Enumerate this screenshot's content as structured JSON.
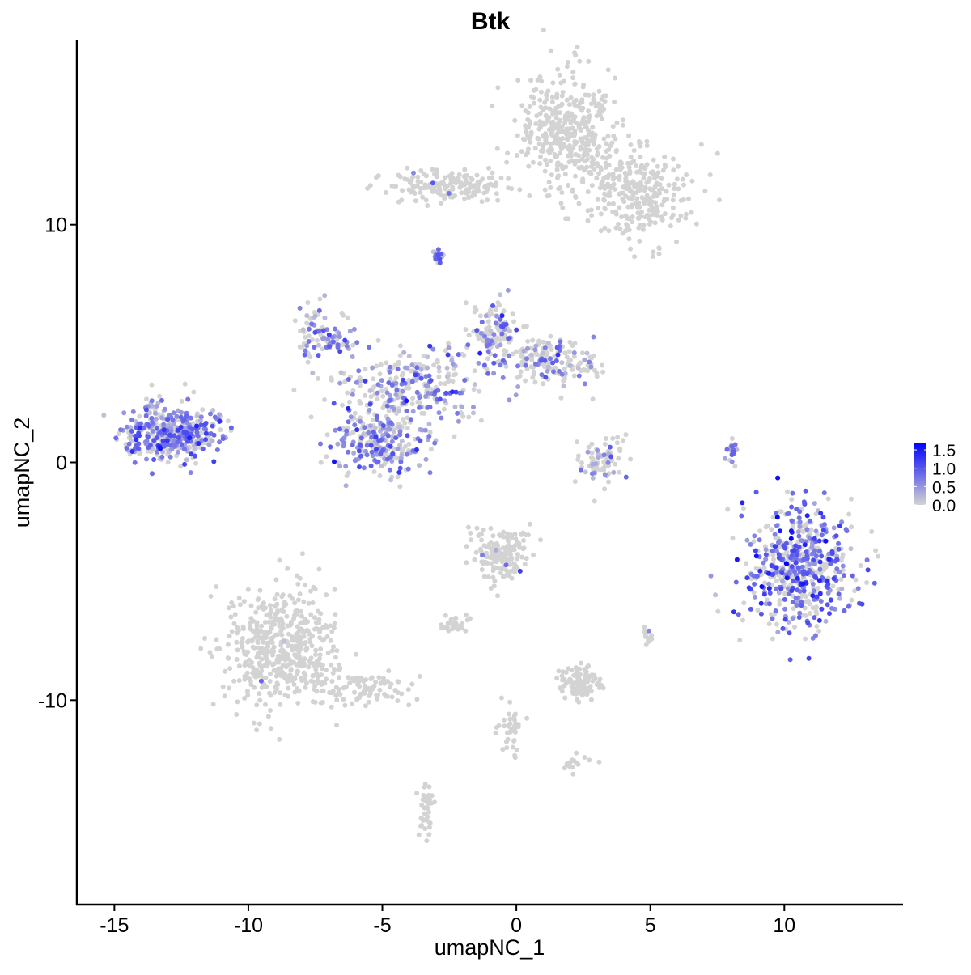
{
  "chart_data": {
    "type": "scatter",
    "title": "Btk",
    "xlabel": "umapNC_1",
    "ylabel": "umapNC_2",
    "xlim": [
      -16.4,
      14.4
    ],
    "ylim": [
      -18.6,
      17.75
    ],
    "x_ticks": [
      -15,
      -10,
      -5,
      0,
      5,
      10
    ],
    "y_ticks": [
      -10,
      0,
      10
    ],
    "x_tick_labels": [
      "-15",
      "-10",
      "-5",
      "0",
      "5",
      "10"
    ],
    "y_tick_labels": [
      "-10",
      "0",
      "10"
    ],
    "grid": false,
    "legend": {
      "placement": "right",
      "type": "colorbar",
      "range": [
        0,
        1.7
      ],
      "ticks": [
        "1.5",
        "1.0",
        "0.5",
        "0.0"
      ],
      "tick_values": [
        1.5,
        1.0,
        0.5,
        0.0
      ],
      "low_color": "#D3D3D3",
      "high_color": "#0000FF"
    },
    "clusters": [
      {
        "x": 1.9,
        "y": 14.0,
        "sx": 0.9,
        "sy": 1.2,
        "n": 380,
        "expr_frac": 0.0,
        "expr_mean": 0
      },
      {
        "x": 4.4,
        "y": 11.4,
        "sx": 1.0,
        "sy": 1.0,
        "n": 300,
        "expr_frac": 0.01,
        "expr_mean": 0.5
      },
      {
        "x": -2.4,
        "y": 11.6,
        "sx": 1.2,
        "sy": 0.35,
        "n": 170,
        "expr_frac": 0.01,
        "expr_mean": 0.5
      },
      {
        "x": -2.9,
        "y": 8.7,
        "sx": 0.12,
        "sy": 0.2,
        "n": 15,
        "expr_frac": 0.8,
        "expr_mean": 0.8
      },
      {
        "x": -12.8,
        "y": 1.2,
        "sx": 0.9,
        "sy": 0.55,
        "n": 420,
        "expr_frac": 0.65,
        "expr_mean": 0.6
      },
      {
        "x": -7.2,
        "y": 5.3,
        "sx": 0.5,
        "sy": 0.6,
        "n": 90,
        "expr_frac": 0.5,
        "expr_mean": 0.6
      },
      {
        "x": -3.9,
        "y": 3.3,
        "sx": 1.4,
        "sy": 0.8,
        "n": 260,
        "expr_frac": 0.45,
        "expr_mean": 0.6
      },
      {
        "x": -5.1,
        "y": 0.9,
        "sx": 0.9,
        "sy": 0.75,
        "n": 260,
        "expr_frac": 0.55,
        "expr_mean": 0.6
      },
      {
        "x": -0.8,
        "y": 5.6,
        "sx": 0.5,
        "sy": 0.7,
        "n": 110,
        "expr_frac": 0.45,
        "expr_mean": 0.6
      },
      {
        "x": 1.2,
        "y": 4.2,
        "sx": 1.0,
        "sy": 0.45,
        "n": 170,
        "expr_frac": 0.3,
        "expr_mean": 0.6
      },
      {
        "x": 3.1,
        "y": 0.0,
        "sx": 0.5,
        "sy": 0.55,
        "n": 80,
        "expr_frac": 0.25,
        "expr_mean": 0.6
      },
      {
        "x": 10.6,
        "y": -4.4,
        "sx": 0.95,
        "sy": 1.25,
        "n": 560,
        "expr_frac": 0.55,
        "expr_mean": 0.8
      },
      {
        "x": 8.1,
        "y": 0.4,
        "sx": 0.12,
        "sy": 0.35,
        "n": 20,
        "expr_frac": 0.6,
        "expr_mean": 0.6
      },
      {
        "x": -8.7,
        "y": -7.8,
        "sx": 1.0,
        "sy": 1.2,
        "n": 520,
        "expr_frac": 0.003,
        "expr_mean": 0.6
      },
      {
        "x": -5.7,
        "y": -9.5,
        "sx": 0.9,
        "sy": 0.4,
        "n": 90,
        "expr_frac": 0.0,
        "expr_mean": 0
      },
      {
        "x": -0.5,
        "y": -3.9,
        "sx": 0.5,
        "sy": 0.6,
        "n": 160,
        "expr_frac": 0.02,
        "expr_mean": 0.6
      },
      {
        "x": -2.4,
        "y": -6.8,
        "sx": 0.3,
        "sy": 0.2,
        "n": 30,
        "expr_frac": 0.0,
        "expr_mean": 0
      },
      {
        "x": 2.3,
        "y": -9.3,
        "sx": 0.4,
        "sy": 0.4,
        "n": 100,
        "expr_frac": 0.0,
        "expr_mean": 0
      },
      {
        "x": -0.2,
        "y": -11.2,
        "sx": 0.2,
        "sy": 0.6,
        "n": 40,
        "expr_frac": 0.0,
        "expr_mean": 0
      },
      {
        "x": -3.4,
        "y": -14.6,
        "sx": 0.15,
        "sy": 0.6,
        "n": 40,
        "expr_frac": 0.03,
        "expr_mean": 0.6
      },
      {
        "x": 4.9,
        "y": -7.3,
        "sx": 0.1,
        "sy": 0.2,
        "n": 15,
        "expr_frac": 0.1,
        "expr_mean": 0.6
      },
      {
        "x": 2.3,
        "y": -12.6,
        "sx": 0.3,
        "sy": 0.2,
        "n": 20,
        "expr_frac": 0.0,
        "expr_mean": 0
      }
    ]
  }
}
